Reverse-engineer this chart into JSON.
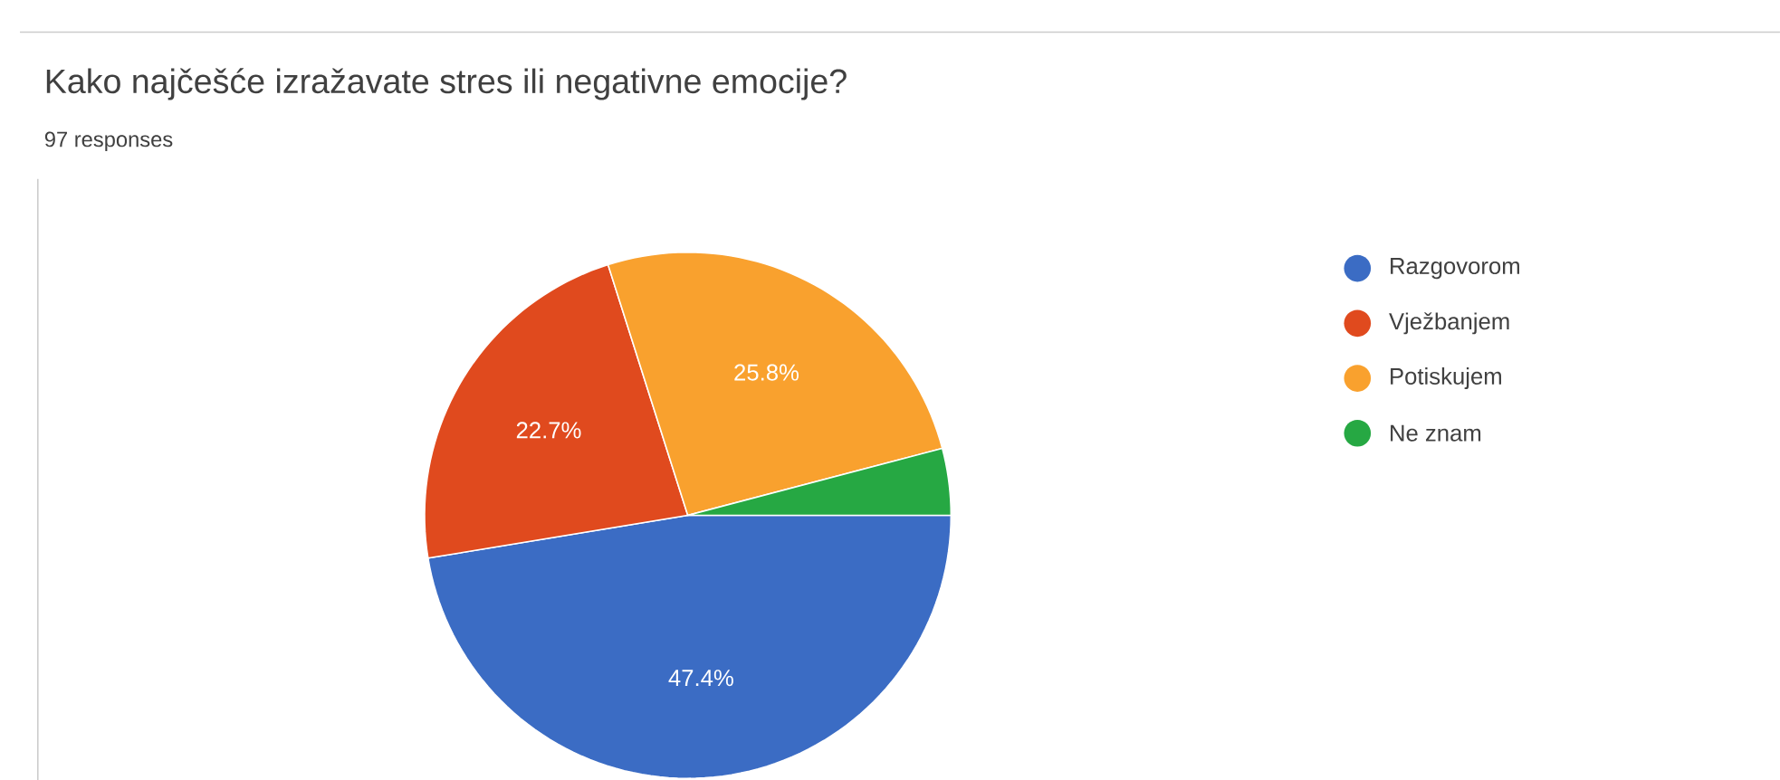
{
  "chart_data": {
    "type": "pie",
    "title": "Kako najčešće izražavate stres ili negativne emocije?",
    "subtitle": "97 responses",
    "categories": [
      "Razgovorom",
      "Vježbanjem",
      "Potiskujem",
      "Ne znam"
    ],
    "values": [
      47.4,
      22.7,
      25.8,
      4.1
    ],
    "colors": [
      "#3b6cc4",
      "#e04a1e",
      "#f9a12e",
      "#26a843"
    ],
    "value_labels": [
      "47.4%",
      "22.7%",
      "25.8%",
      null
    ],
    "legend": "right"
  }
}
